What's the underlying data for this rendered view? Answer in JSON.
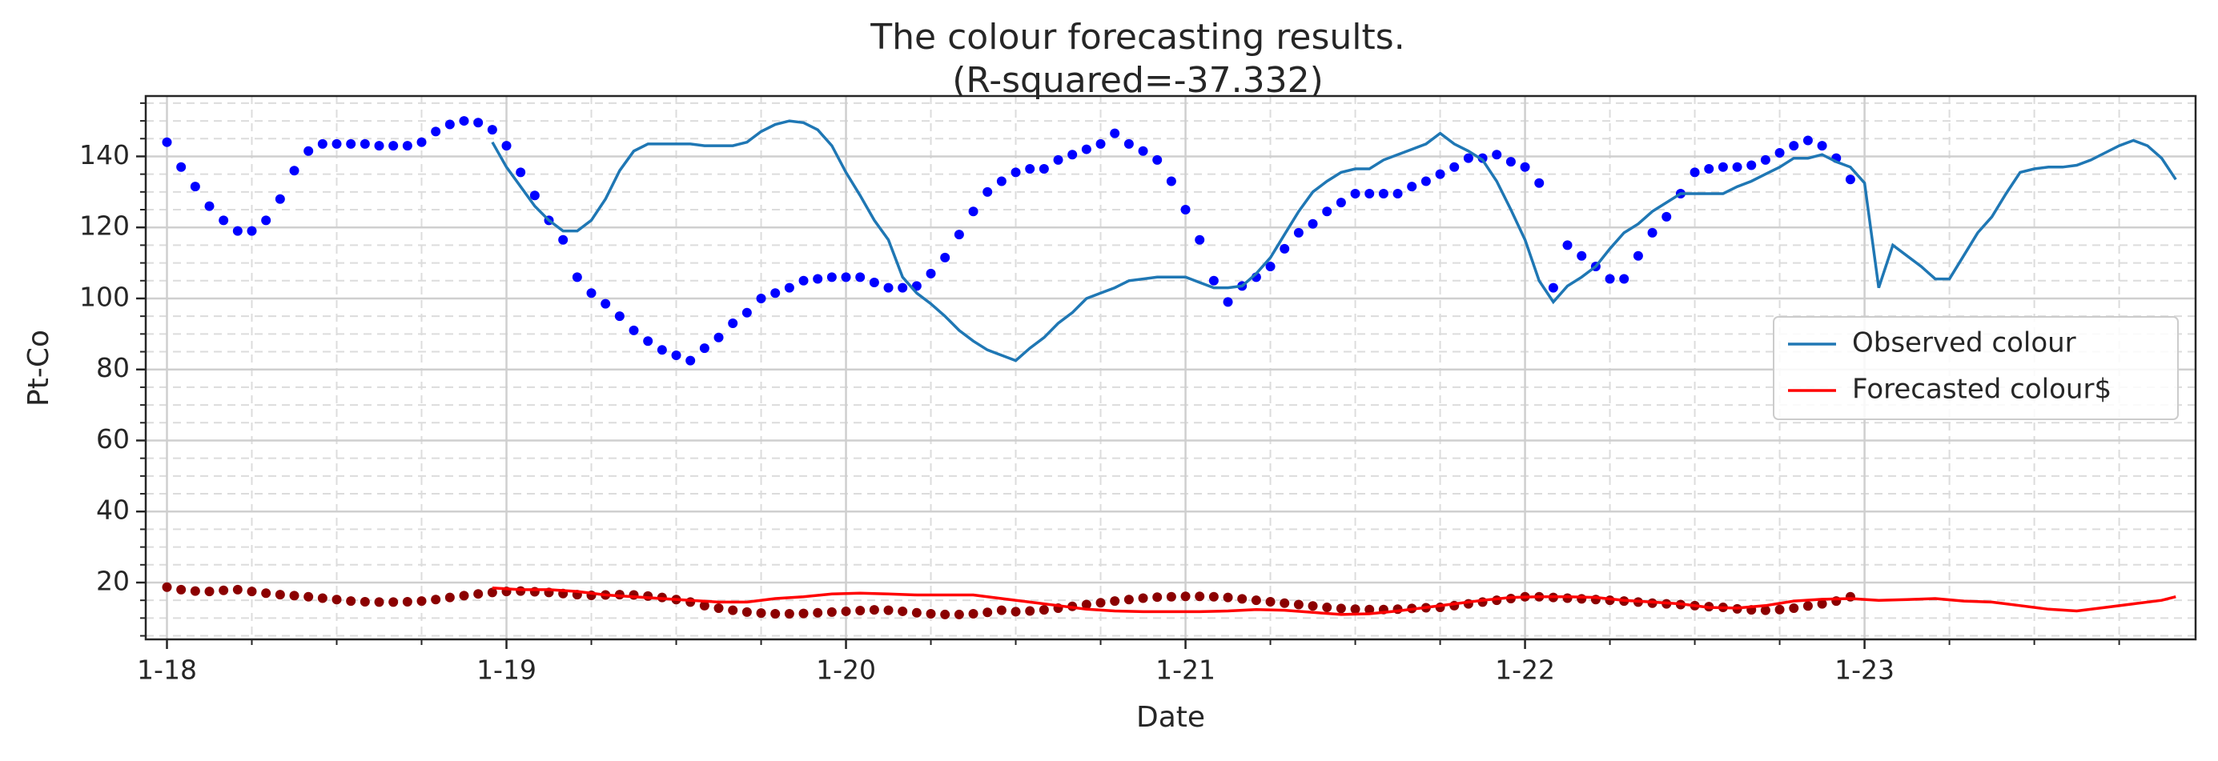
{
  "chart_data": {
    "type": "line",
    "title": [
      "The colour forecasting results.",
      "(R-squared=-37.332)"
    ],
    "xlabel": "Date",
    "ylabel": "Pt-Co",
    "xlim": [
      -1.5,
      143.4
    ],
    "ylim": [
      4,
      157
    ],
    "xticks": [
      {
        "value": 0,
        "label": "1-18"
      },
      {
        "value": 24,
        "label": "1-19"
      },
      {
        "value": 48,
        "label": "1-20"
      },
      {
        "value": 72,
        "label": "1-21"
      },
      {
        "value": 96,
        "label": "1-22"
      },
      {
        "value": 120,
        "label": "1-23"
      }
    ],
    "yticks": [
      20,
      40,
      60,
      80,
      100,
      120,
      140
    ],
    "minor_xticks": [
      6,
      12,
      18,
      30,
      36,
      42,
      54,
      60,
      66,
      78,
      84,
      90,
      102,
      108,
      114,
      126,
      132,
      138
    ],
    "minor_yticks": [
      5,
      10,
      15,
      25,
      30,
      35,
      45,
      50,
      55,
      65,
      70,
      75,
      85,
      90,
      95,
      105,
      110,
      115,
      125,
      130,
      135,
      145,
      150,
      155
    ],
    "grid": true,
    "minor_grid": true,
    "legend": "right",
    "series": [
      {
        "style": "dots",
        "color": "#0000ff",
        "x": [
          0,
          1,
          2,
          3,
          4,
          5,
          6,
          7,
          8,
          9,
          10,
          11,
          12,
          13,
          14,
          15,
          16,
          17,
          18,
          19,
          20,
          21,
          22,
          23,
          24,
          25,
          26,
          27,
          28,
          29,
          30,
          31,
          32,
          33,
          34,
          35,
          36,
          37,
          38,
          39,
          40,
          41,
          42,
          43,
          44,
          45,
          46,
          47,
          48,
          49,
          50,
          51,
          52,
          53,
          54,
          55,
          56,
          57,
          58,
          59,
          60,
          61,
          62,
          63,
          64,
          65,
          66,
          67,
          68,
          69,
          70,
          71,
          72,
          73,
          74,
          75,
          76,
          77,
          78,
          79,
          80,
          81,
          82,
          83,
          84,
          85,
          86,
          87,
          88,
          89,
          90,
          91,
          92,
          93,
          94,
          95,
          96,
          97,
          98,
          99,
          100,
          101,
          102,
          103,
          104,
          105,
          106,
          107,
          108,
          109,
          110,
          111,
          112,
          113,
          114,
          115,
          116,
          117,
          118,
          119
        ],
        "values": [
          144,
          137,
          131.5,
          126,
          122,
          119,
          119,
          122,
          128,
          136,
          141.5,
          143.5,
          143.5,
          143.5,
          143.5,
          143,
          143,
          143,
          144,
          147,
          149,
          150,
          149.5,
          147.5,
          143,
          135.5,
          129,
          122,
          116.5,
          106,
          101.5,
          98.5,
          95,
          91,
          88,
          85.5,
          84,
          82.5,
          86,
          89,
          93,
          96,
          100,
          101.5,
          103,
          105,
          105.5,
          106,
          106,
          106,
          104.5,
          103,
          103,
          103.5,
          107,
          111.5,
          118,
          124.5,
          130,
          133,
          135.5,
          136.5,
          136.5,
          139,
          140.5,
          142,
          143.5,
          146.5,
          143.5,
          141.5,
          139,
          133,
          125,
          116.5,
          105,
          99,
          103.5,
          106,
          109,
          114,
          118.5,
          121,
          124.5,
          127,
          129.5,
          129.5,
          129.5,
          129.5,
          131.5,
          133,
          135,
          137,
          139.5,
          139.5,
          140.5,
          138.5,
          137,
          132.5,
          103,
          115,
          112,
          109,
          105.5,
          105.5,
          112,
          118.5,
          123,
          129.5,
          135.5,
          136.5,
          137,
          137,
          137.5,
          139,
          141,
          143,
          144.5,
          143,
          139.5,
          133.5
        ]
      },
      {
        "style": "dots",
        "color": "#8b0000",
        "x": [
          0,
          1,
          2,
          3,
          4,
          5,
          6,
          7,
          8,
          9,
          10,
          11,
          12,
          13,
          14,
          15,
          16,
          17,
          18,
          19,
          20,
          21,
          22,
          23,
          24,
          25,
          26,
          27,
          28,
          29,
          30,
          31,
          32,
          33,
          34,
          35,
          36,
          37,
          38,
          39,
          40,
          41,
          42,
          43,
          44,
          45,
          46,
          47,
          48,
          49,
          50,
          51,
          52,
          53,
          54,
          55,
          56,
          57,
          58,
          59,
          60,
          61,
          62,
          63,
          64,
          65,
          66,
          67,
          68,
          69,
          70,
          71,
          72,
          73,
          74,
          75,
          76,
          77,
          78,
          79,
          80,
          81,
          82,
          83,
          84,
          85,
          86,
          87,
          88,
          89,
          90,
          91,
          92,
          93,
          94,
          95,
          96,
          97,
          98,
          99,
          100,
          101,
          102,
          103,
          104,
          105,
          106,
          107,
          108,
          109,
          110,
          111,
          112,
          113,
          114,
          115,
          116,
          117,
          118,
          119
        ],
        "values": [
          18.7,
          18,
          17.6,
          17.5,
          17.8,
          18,
          17.5,
          17,
          16.6,
          16.3,
          16,
          15.6,
          15.2,
          14.8,
          14.6,
          14.5,
          14.5,
          14.6,
          14.8,
          15.2,
          15.8,
          16.3,
          16.8,
          17.2,
          17.5,
          17.6,
          17.4,
          17.2,
          16.9,
          16.6,
          16.4,
          16.5,
          16.6,
          16.5,
          16.2,
          15.8,
          15.2,
          14.5,
          13.5,
          12.8,
          12.2,
          11.7,
          11.4,
          11.2,
          11.2,
          11.3,
          11.5,
          11.7,
          11.9,
          12.1,
          12.3,
          12.2,
          11.9,
          11.5,
          11.2,
          11,
          11,
          11.2,
          11.6,
          12.2,
          11.8,
          12,
          12.3,
          12.8,
          13.3,
          13.8,
          14.3,
          14.8,
          15.2,
          15.6,
          15.9,
          16,
          16.1,
          16.1,
          16,
          15.8,
          15.4,
          15,
          14.6,
          14.2,
          13.8,
          13.4,
          13,
          12.7,
          12.5,
          12.4,
          12.4,
          12.5,
          12.7,
          12.9,
          13,
          13.5,
          14,
          14.5,
          15,
          15.5,
          16,
          16,
          15.8,
          15.6,
          15.4,
          15.2,
          15,
          14.8,
          14.5,
          14.2,
          14,
          13.8,
          13.5,
          13.2,
          13,
          12.6,
          12.3,
          12.2,
          12.4,
          12.8,
          13.4,
          14,
          14.8,
          16
        ]
      },
      {
        "name": "Observed colour",
        "style": "line",
        "color": "#1f77b4",
        "x": [
          23,
          24,
          25,
          26,
          27,
          28,
          29,
          30,
          31,
          32,
          33,
          34,
          35,
          36,
          37,
          38,
          39,
          40,
          41,
          42,
          43,
          44,
          45,
          46,
          47,
          48,
          49,
          50,
          51,
          52,
          53,
          54,
          55,
          56,
          57,
          58,
          59,
          60,
          61,
          62,
          63,
          64,
          65,
          66,
          67,
          68,
          69,
          70,
          71,
          72,
          73,
          74,
          75,
          76,
          77,
          78,
          79,
          80,
          81,
          82,
          83,
          84,
          85,
          86,
          87,
          88,
          89,
          90,
          91,
          92,
          93,
          94,
          95,
          96,
          97,
          98,
          99,
          100,
          101,
          102,
          103,
          104,
          105,
          106,
          107,
          108,
          109,
          110,
          111,
          112,
          113,
          114,
          115,
          116,
          117,
          118,
          119,
          120,
          121,
          122,
          123,
          124,
          125,
          126,
          127,
          128,
          129,
          130,
          131,
          132,
          133,
          134,
          135,
          136,
          137,
          138,
          139,
          140,
          141,
          142
        ],
        "values": [
          144,
          137,
          131.5,
          126,
          122,
          119,
          119,
          122,
          128,
          136,
          141.5,
          143.5,
          143.5,
          143.5,
          143.5,
          143,
          143,
          143,
          144,
          147,
          149,
          150,
          149.5,
          147.5,
          143,
          135.5,
          129,
          122,
          116.5,
          106,
          101.5,
          98.5,
          95,
          91,
          88,
          85.5,
          84,
          82.5,
          86,
          89,
          93,
          96,
          100,
          101.5,
          103,
          105,
          105.5,
          106,
          106,
          106,
          104.5,
          103,
          103,
          103.5,
          107,
          111.5,
          118,
          124.5,
          130,
          133,
          135.5,
          136.5,
          136.5,
          139,
          140.5,
          142,
          143.5,
          146.5,
          143.5,
          141.5,
          139,
          133,
          125,
          116.5,
          105,
          99,
          103.5,
          106,
          109,
          114,
          118.5,
          121,
          124.5,
          127,
          129.5,
          129.5,
          129.5,
          129.5,
          131.5,
          133,
          135,
          137,
          139.5,
          139.5,
          140.5,
          138.5,
          137,
          132.5,
          103,
          115,
          112,
          109,
          105.5,
          105.5,
          112,
          118.5,
          123,
          129.5,
          135.5,
          136.5,
          137,
          137,
          137.5,
          139,
          141,
          143,
          144.5,
          143,
          139.5,
          133.5
        ]
      },
      {
        "name": "Forecasted colour$",
        "style": "line",
        "color": "#ff0000",
        "x": [
          23,
          25,
          27,
          29,
          31,
          33,
          35,
          37,
          39,
          41,
          43,
          45,
          47,
          49,
          51,
          53,
          55,
          57,
          59,
          61,
          63,
          65,
          67,
          69,
          71,
          73,
          75,
          77,
          79,
          81,
          83,
          85,
          87,
          89,
          91,
          93,
          95,
          97,
          99,
          101,
          103,
          105,
          107,
          109,
          111,
          113,
          115,
          117,
          119,
          121,
          123,
          125,
          127,
          129,
          131,
          133,
          135,
          137,
          139,
          141,
          142
        ],
        "values": [
          18.5,
          18,
          18,
          17.5,
          16.5,
          16,
          15.5,
          15,
          14.5,
          14.5,
          15.5,
          16,
          16.8,
          17,
          16.8,
          16.5,
          16.5,
          16.5,
          15.5,
          14.5,
          13.5,
          12.5,
          12,
          11.8,
          11.8,
          11.8,
          12,
          12.4,
          12.2,
          11.6,
          11,
          11.2,
          12,
          13,
          14,
          15,
          15.8,
          16,
          16,
          15.8,
          15,
          14.5,
          14,
          13,
          12.8,
          13.5,
          14.8,
          15.3,
          15.5,
          15,
          15.2,
          15.5,
          14.8,
          14.5,
          13.5,
          12.5,
          12,
          13,
          14,
          15,
          16
        ]
      }
    ]
  }
}
